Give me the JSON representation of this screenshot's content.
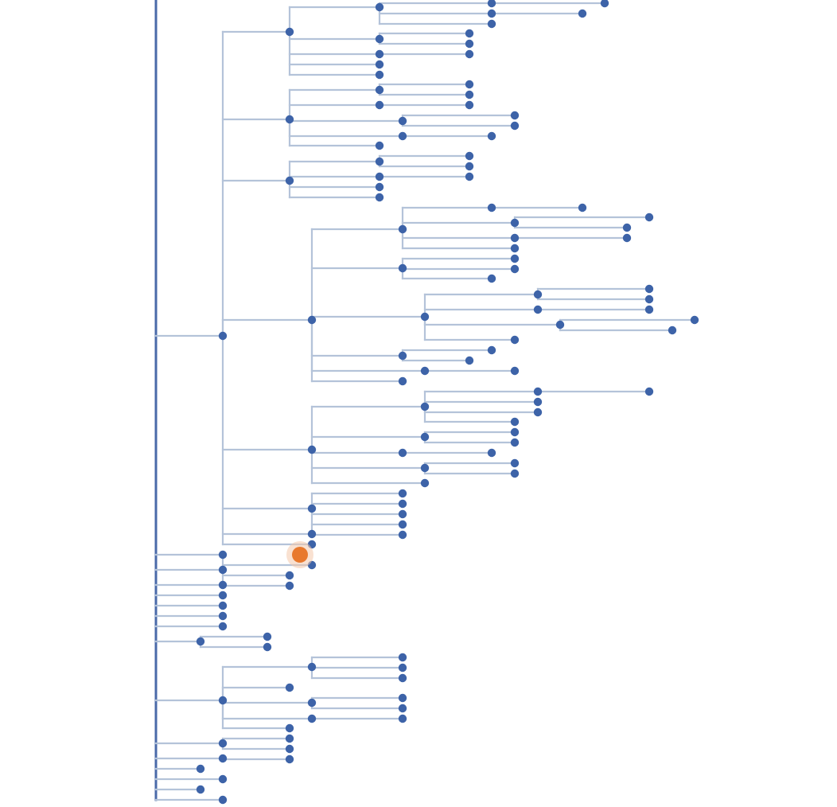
{
  "colors": {
    "background": "#ffffff",
    "link": "#b4c3d9",
    "root_trunk": "#4a6aa8",
    "node": "#3d63a8",
    "highlight": "#e8792e",
    "highlight_halo": "#f4c9ac"
  },
  "tree": {
    "orientation": "left-to-right",
    "node_style": "dot",
    "link_style": "elbow",
    "highlighted_node_count": 1
  }
}
